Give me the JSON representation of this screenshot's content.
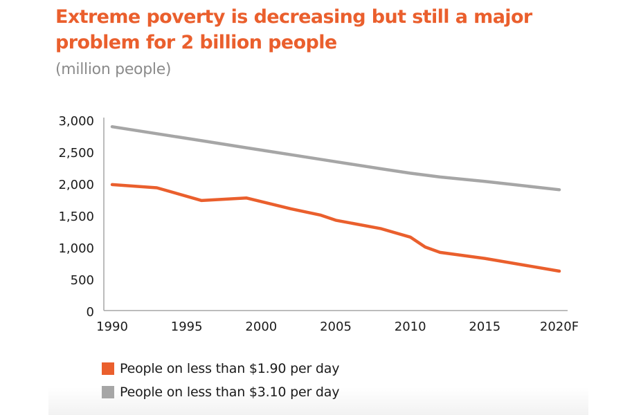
{
  "header": {
    "title": "Extreme poverty is decreasing but still a major problem for 2 billion people",
    "subtitle": "(million people)"
  },
  "colors": {
    "accent": "#ea5f2d",
    "series_190": "#ea5f2d",
    "series_310": "#a6a6a6",
    "axis": "#a6a6a6",
    "text": "#1a1a1a",
    "subtitle": "#8b8b8b"
  },
  "chart_data": {
    "type": "line",
    "title": "Extreme poverty is decreasing but still a major problem for 2 billion people",
    "subtitle": "(million people)",
    "xlabel": "",
    "ylabel": "million people",
    "xlim": [
      1990,
      2020
    ],
    "ylim": [
      0,
      3000
    ],
    "grid": false,
    "x_ticks": [
      1990,
      1995,
      2000,
      2005,
      2010,
      2015,
      2020
    ],
    "x_tick_labels": [
      "1990",
      "1995",
      "2000",
      "2005",
      "2010",
      "2015",
      "2020F"
    ],
    "y_ticks": [
      0,
      500,
      1000,
      1500,
      2000,
      2500,
      3000
    ],
    "y_tick_labels": [
      "0",
      "500",
      "1,000",
      "1,500",
      "2,000",
      "2,500",
      "3,000"
    ],
    "legend_position": "bottom-left",
    "series": [
      {
        "name": "People on less than $1.90 per day",
        "color": "#ea5f2d",
        "x": [
          1990,
          1993,
          1996,
          1999,
          2002,
          2004,
          2005,
          2008,
          2010,
          2011,
          2012,
          2015,
          2020
        ],
        "values": [
          1990,
          1940,
          1740,
          1780,
          1610,
          1510,
          1430,
          1300,
          1165,
          1010,
          925,
          830,
          630
        ]
      },
      {
        "name": "People on less than $3.10 per day",
        "color": "#a6a6a6",
        "x": [
          1990,
          1993,
          1996,
          1999,
          2002,
          2005,
          2008,
          2010,
          2012,
          2015,
          2020
        ],
        "values": [
          2900,
          2790,
          2680,
          2570,
          2460,
          2350,
          2240,
          2170,
          2110,
          2040,
          1910
        ]
      }
    ]
  },
  "legend": {
    "items": [
      {
        "label": "People on less than $1.90 per day",
        "color": "#ea5f2d"
      },
      {
        "label": "People on less than $3.10 per day",
        "color": "#a6a6a6"
      }
    ]
  }
}
